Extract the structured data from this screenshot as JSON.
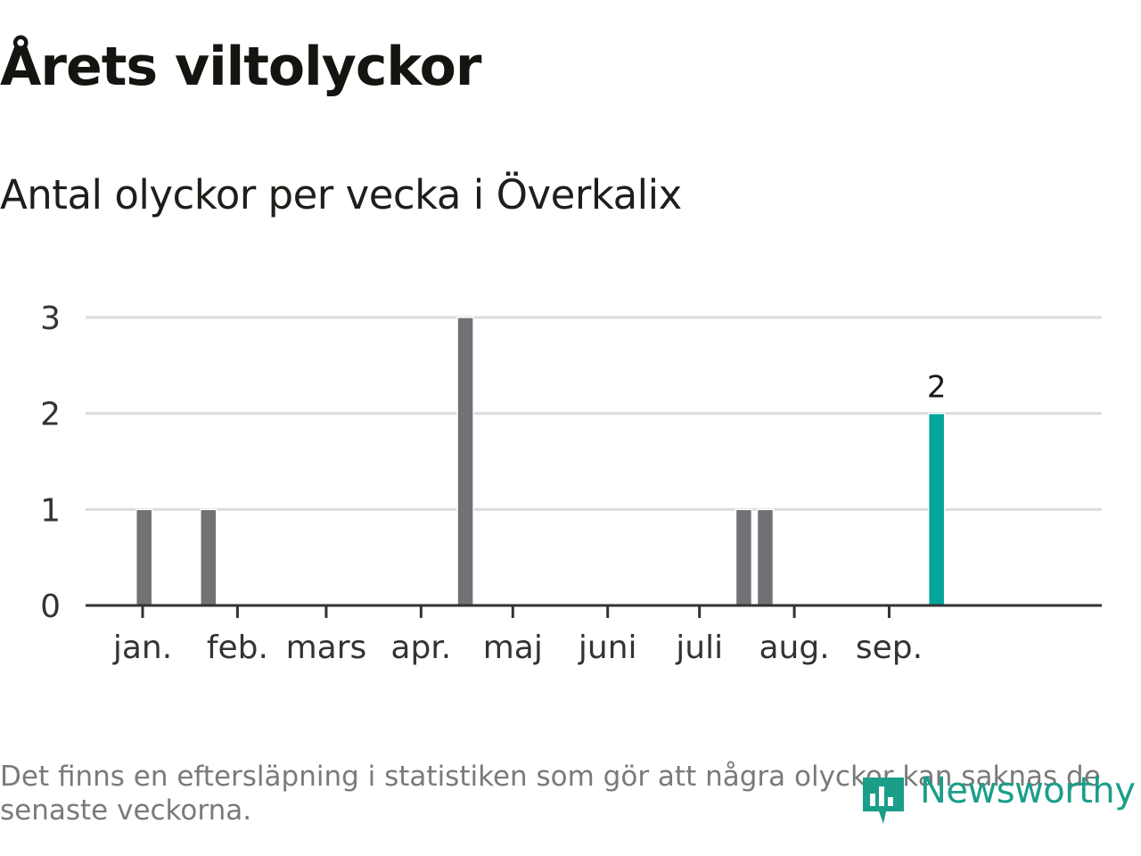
{
  "header": {
    "title": "Årets viltolyckor",
    "subtitle": "Antal olyckor per vecka i Överkalix"
  },
  "chart_data": {
    "type": "bar",
    "title": "Årets viltolyckor",
    "subtitle": "Antal olyckor per vecka i Överkalix",
    "xlabel": "",
    "ylabel": "",
    "ylim": [
      0,
      3
    ],
    "yticks": [
      "0",
      "1",
      "2",
      "3"
    ],
    "xaxis": {
      "type": "time",
      "start": "2024-01-01",
      "tick_labels": [
        "jan.",
        "feb.",
        "mars",
        "apr.",
        "maj",
        "juni",
        "juli",
        "aug.",
        "sep."
      ]
    },
    "grid": true,
    "series": [
      {
        "unit": "week",
        "weeks": [
          1,
          4,
          16,
          29,
          30,
          38
        ],
        "values": [
          1,
          1,
          3,
          1,
          1,
          2
        ],
        "highlight_last": true,
        "last_value_label": "2"
      }
    ],
    "colors": {
      "bar": "#717176",
      "highlight": "#00a59b",
      "grid": "#dcdcdc",
      "axis": "#333333"
    }
  },
  "footer": {
    "note": "Det finns en eftersläpning i statistiken som gör att några olyckor kan saknas de senaste veckorna.",
    "logo_text": "Newsworthy",
    "logo_icon": "newsworthy-chart-icon",
    "logo_color": "#1a9e8a"
  }
}
